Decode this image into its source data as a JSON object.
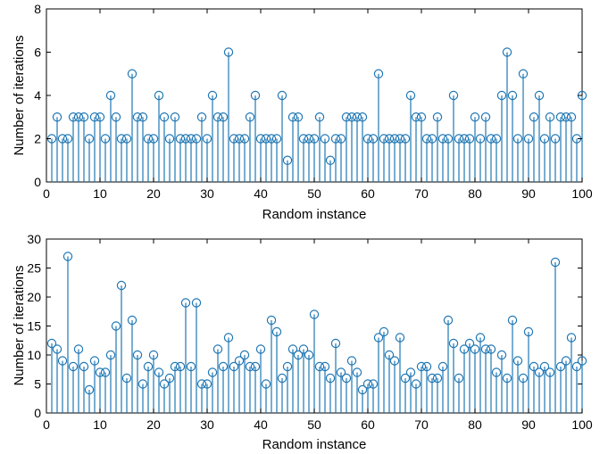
{
  "chart_data": [
    {
      "type": "stem",
      "xlabel": "Random instance",
      "ylabel": "Number of iterations",
      "xlim": [
        0,
        100
      ],
      "ylim": [
        0,
        8
      ],
      "xticks": [
        "0",
        "10",
        "20",
        "30",
        "40",
        "50",
        "60",
        "70",
        "80",
        "90",
        "100"
      ],
      "yticks": [
        "0",
        "2",
        "4",
        "6",
        "8"
      ],
      "grid": false,
      "x_start": 1,
      "values": [
        2,
        3,
        2,
        2,
        3,
        3,
        3,
        2,
        3,
        3,
        2,
        4,
        3,
        2,
        2,
        5,
        3,
        3,
        2,
        2,
        4,
        3,
        2,
        3,
        2,
        2,
        2,
        2,
        3,
        2,
        4,
        3,
        3,
        6,
        2,
        2,
        2,
        3,
        4,
        2,
        2,
        2,
        2,
        4,
        1,
        3,
        3,
        2,
        2,
        2,
        3,
        2,
        1,
        2,
        2,
        3,
        3,
        3,
        3,
        2,
        2,
        5,
        2,
        2,
        2,
        2,
        2,
        4,
        3,
        3,
        2,
        2,
        3,
        2,
        2,
        4,
        2,
        2,
        2,
        3,
        2,
        3,
        2,
        2,
        4,
        6,
        4,
        2,
        5,
        2,
        3,
        4,
        2,
        3,
        2,
        3,
        3,
        3,
        2,
        4
      ],
      "color": "#1f77b4"
    },
    {
      "type": "stem",
      "xlabel": "Random instance",
      "ylabel": "Number of iterations",
      "xlim": [
        0,
        100
      ],
      "ylim": [
        0,
        30
      ],
      "xticks": [
        "0",
        "10",
        "20",
        "30",
        "40",
        "50",
        "60",
        "70",
        "80",
        "90",
        "100"
      ],
      "yticks": [
        "0",
        "5",
        "10",
        "15",
        "20",
        "25",
        "30"
      ],
      "grid": false,
      "x_start": 1,
      "values": [
        12,
        11,
        9,
        27,
        8,
        11,
        8,
        4,
        9,
        7,
        7,
        10,
        15,
        22,
        6,
        16,
        10,
        5,
        8,
        10,
        7,
        5,
        6,
        8,
        8,
        19,
        8,
        19,
        5,
        5,
        7,
        11,
        8,
        13,
        8,
        9,
        10,
        8,
        8,
        11,
        5,
        16,
        14,
        6,
        8,
        11,
        10,
        11,
        10,
        17,
        8,
        8,
        6,
        12,
        7,
        6,
        9,
        7,
        4,
        5,
        5,
        13,
        14,
        10,
        9,
        13,
        6,
        7,
        5,
        8,
        8,
        6,
        6,
        8,
        16,
        12,
        6,
        11,
        12,
        11,
        13,
        11,
        11,
        7,
        10,
        6,
        16,
        9,
        6,
        14,
        8,
        7,
        8,
        7,
        26,
        8,
        9,
        13,
        8,
        9
      ],
      "color": "#1f77b4"
    }
  ]
}
